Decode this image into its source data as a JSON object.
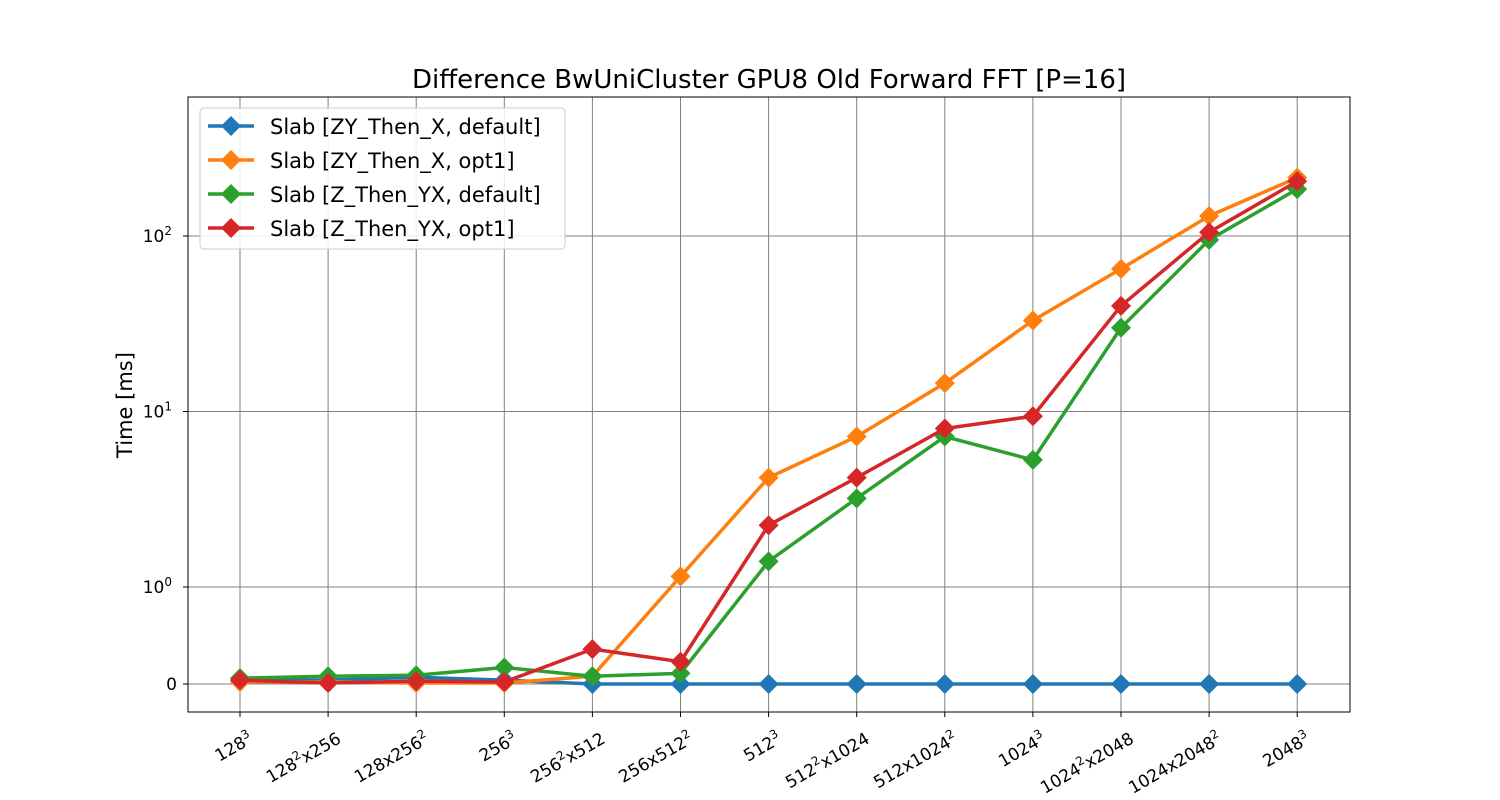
{
  "chart_data": {
    "type": "line",
    "title": "Difference BwUniCluster GPU8 Old Forward FFT [P=16]",
    "xlabel": "",
    "ylabel": "Time [ms]",
    "yscale": "symlog",
    "ytick_labels": [
      {
        "value": 0,
        "base": "0",
        "exp": ""
      },
      {
        "value": 1,
        "base": "10",
        "exp": "0"
      },
      {
        "value": 10,
        "base": "10",
        "exp": "1"
      },
      {
        "value": 100,
        "base": "10",
        "exp": "2"
      }
    ],
    "categories": [
      {
        "base": "128",
        "sup": "3",
        "rest": "",
        "rest_sup": ""
      },
      {
        "base": "128",
        "sup": "2",
        "rest": "x256",
        "rest_sup": ""
      },
      {
        "base": "128x256",
        "sup": "2",
        "rest": "",
        "rest_sup": ""
      },
      {
        "base": "256",
        "sup": "3",
        "rest": "",
        "rest_sup": ""
      },
      {
        "base": "256",
        "sup": "2",
        "rest": "x512",
        "rest_sup": ""
      },
      {
        "base": "256x512",
        "sup": "2",
        "rest": "",
        "rest_sup": ""
      },
      {
        "base": "512",
        "sup": "3",
        "rest": "",
        "rest_sup": ""
      },
      {
        "base": "512",
        "sup": "2",
        "rest": "x1024",
        "rest_sup": ""
      },
      {
        "base": "512x1024",
        "sup": "2",
        "rest": "",
        "rest_sup": ""
      },
      {
        "base": "1024",
        "sup": "3",
        "rest": "",
        "rest_sup": ""
      },
      {
        "base": "1024",
        "sup": "2",
        "rest": "x2048",
        "rest_sup": ""
      },
      {
        "base": "1024x2048",
        "sup": "2",
        "rest": "",
        "rest_sup": ""
      },
      {
        "base": "2048",
        "sup": "3",
        "rest": "",
        "rest_sup": ""
      }
    ],
    "series": [
      {
        "name": "Slab [ZY_Then_X, default]",
        "color": "#1f77b4",
        "values": [
          0.04,
          0.04,
          0.07,
          0.04,
          0,
          0,
          0,
          0,
          0,
          0,
          0,
          0,
          0
        ]
      },
      {
        "name": "Slab [ZY_Then_X, opt1]",
        "color": "#ff7f0e",
        "values": [
          0.02,
          0.02,
          0.01,
          0.01,
          0.08,
          1.15,
          4.2,
          7.2,
          14.5,
          33,
          65,
          130,
          215
        ]
      },
      {
        "name": "Slab [Z_Then_YX, default]",
        "color": "#2ca02c",
        "values": [
          0.06,
          0.08,
          0.09,
          0.17,
          0.08,
          0.11,
          1.4,
          3.2,
          7.2,
          5.3,
          30,
          95,
          185
        ]
      },
      {
        "name": "Slab [Z_Then_YX, opt1]",
        "color": "#d62728",
        "values": [
          0.04,
          0.01,
          0.03,
          0.02,
          0.36,
          0.23,
          2.25,
          4.2,
          8.0,
          9.4,
          40,
          105,
          205
        ]
      }
    ],
    "grid": true,
    "legend_position": "upper-left"
  }
}
